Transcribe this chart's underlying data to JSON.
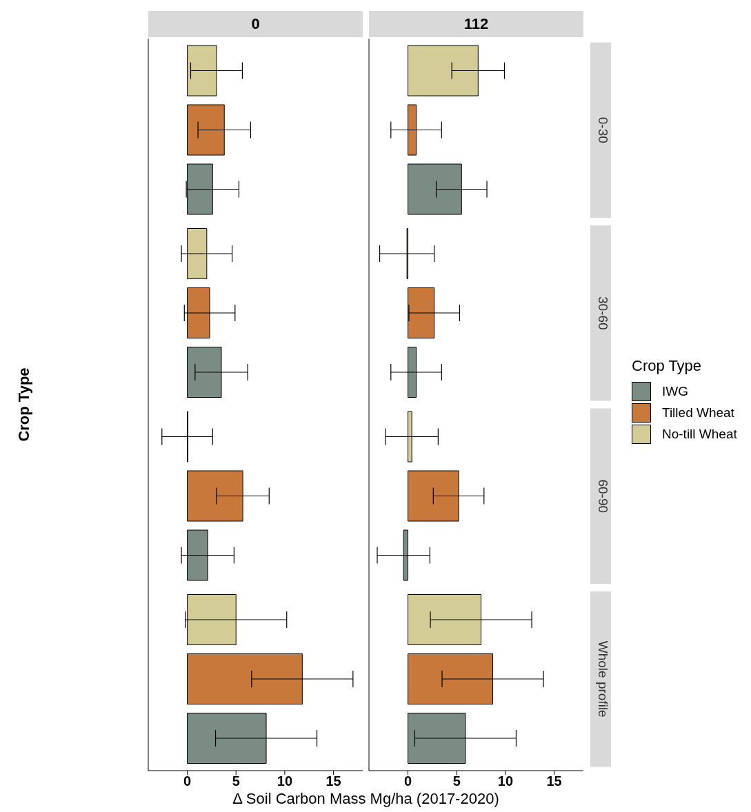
{
  "chart_data": [
    {
      "type": "bar",
      "orientation": "horizontal",
      "title": "0",
      "ylabel": "Crop Type",
      "xlabel": "Δ Soil Carbon Mass Mg/ha (2017-2020)",
      "categories": [
        null,
        null,
        null,
        null
      ],
      "xlim": [
        -4,
        18
      ],
      "xticks": [
        0,
        5,
        10,
        15
      ],
      "tick_labels": "x",
      "series": [
        {
          "color": "#d4cc96",
          "values": [
            3.0,
            2.0,
            0,
            5.0
          ],
          "errors": [
            2.65,
            2.6,
            2.6,
            5.2
          ]
        },
        {
          "color": "#c8783a",
          "values": [
            3.8,
            2.3,
            5.7,
            11.8
          ],
          "errors": [
            2.7,
            2.6,
            2.7,
            5.2
          ]
        },
        {
          "color": "#7a8c84",
          "values": [
            2.6,
            3.5,
            2.1,
            8.1
          ],
          "errors": [
            2.7,
            2.7,
            2.7,
            5.2
          ]
        }
      ]
    },
    {
      "type": "bar",
      "orientation": "horizontal",
      "title": "112",
      "legend": "right",
      "legend_title": "Crop Type",
      "categories": [
        "0-30",
        "30-60",
        "60-90",
        "Whole profile"
      ],
      "xlim": [
        -4,
        18
      ],
      "xticks": [
        0,
        5,
        10,
        15
      ],
      "series": [
        {
          "name": "No-till Wheat",
          "color": "#d4cc96",
          "values": [
            7.2,
            -0.1,
            0.4,
            7.5
          ],
          "errors": [
            2.7,
            2.8,
            2.7,
            5.2
          ]
        },
        {
          "name": "Tilled Wheat",
          "color": "#c8783a",
          "values": [
            0.85,
            2.7,
            5.2,
            8.7
          ],
          "errors": [
            2.6,
            2.6,
            2.6,
            5.2
          ]
        },
        {
          "name": "IWG",
          "color": "#7a8c84",
          "values": [
            5.5,
            0.85,
            -0.45,
            5.9
          ],
          "errors": [
            2.6,
            2.6,
            2.7,
            5.2
          ]
        }
      ]
    }
  ]
}
